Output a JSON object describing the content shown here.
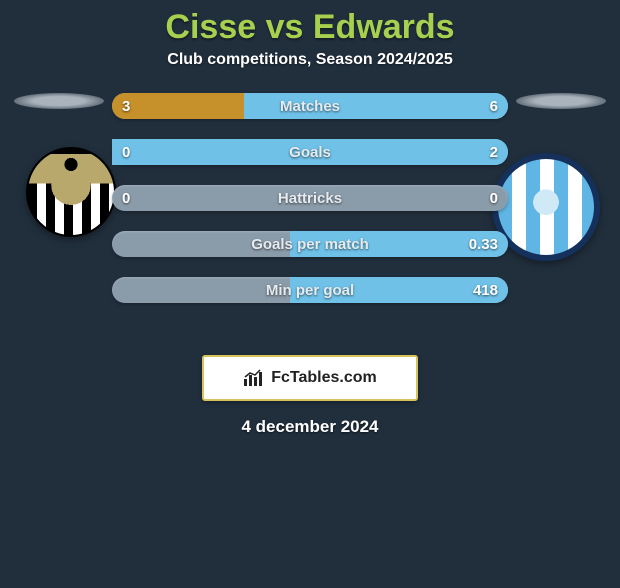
{
  "header": {
    "player_a": "Cisse",
    "vs": "vs",
    "player_b": "Edwards",
    "subtitle": "Club competitions, Season 2024/2025"
  },
  "colors": {
    "team_a_fill": "#c6902a",
    "team_b_fill": "#6fc1e8",
    "bar_bg": "#8a9ba9",
    "page_bg": "#212f3d",
    "title_color": "#a7d04f",
    "brand_border": "#d6c35b"
  },
  "stats": [
    {
      "label": "Matches",
      "a": "3",
      "b": "6",
      "a_pct": 33.3,
      "b_pct": 66.7
    },
    {
      "label": "Goals",
      "a": "0",
      "b": "2",
      "a_pct": 0,
      "b_pct": 100
    },
    {
      "label": "Hattricks",
      "a": "0",
      "b": "0",
      "a_pct": 0,
      "b_pct": 0
    },
    {
      "label": "Goals per match",
      "a": "",
      "b": "0.33",
      "a_pct": 0,
      "b_pct": 55
    },
    {
      "label": "Min per goal",
      "a": "",
      "b": "418",
      "a_pct": 0,
      "b_pct": 55
    }
  ],
  "brand": {
    "text": "FcTables.com"
  },
  "footer": {
    "date": "4 december 2024"
  }
}
